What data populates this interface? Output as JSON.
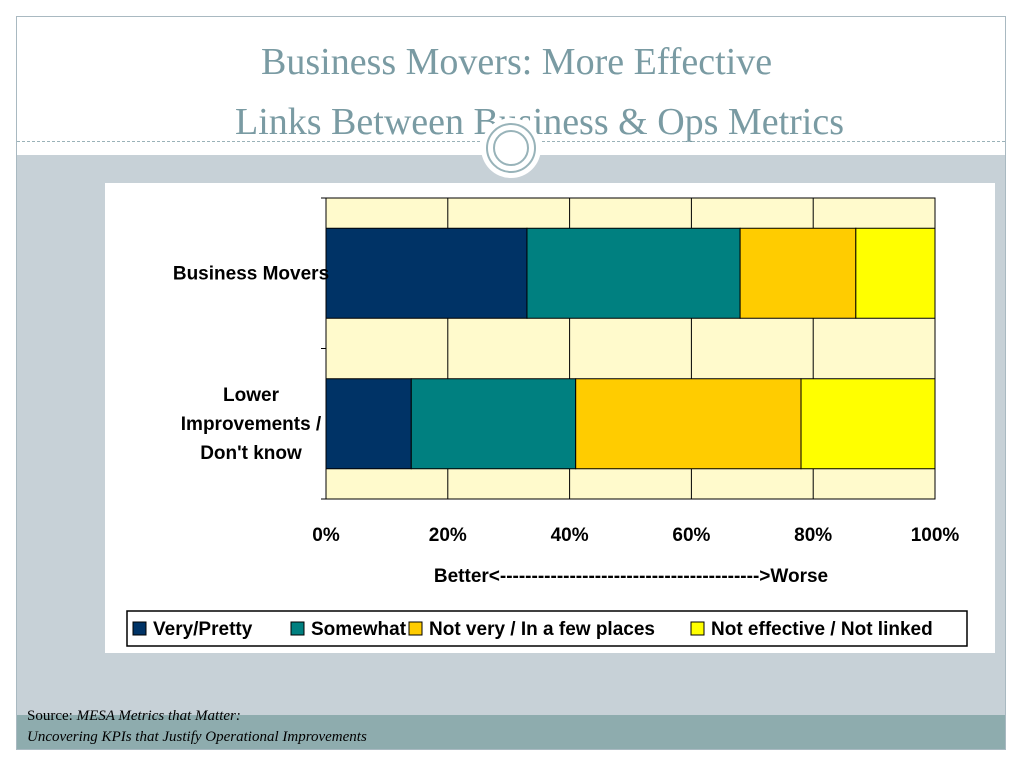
{
  "slide": {
    "title_line1": "Business Movers: More Effective",
    "title_line2": "Links Between Business & Ops Metrics",
    "source_label": "Source: ",
    "source_line1": "MESA  Metrics that Matter:",
    "source_line2": "Uncovering KPIs that Justify Operational Improvements"
  },
  "colors": {
    "plot_background": "#fffacc",
    "series": [
      "#003366",
      "#008080",
      "#ffcc00",
      "#ffff00"
    ]
  },
  "chart_data": {
    "type": "bar",
    "orientation": "horizontal",
    "stacked": "percent",
    "categories": [
      [
        "Business Movers"
      ],
      [
        "Lower",
        "Improvements /",
        "Don't know"
      ]
    ],
    "series": [
      {
        "name": "Very/Pretty",
        "values": [
          33,
          14
        ]
      },
      {
        "name": "Somewhat",
        "values": [
          35,
          27
        ]
      },
      {
        "name": "Not very  / In a few places",
        "values": [
          19,
          37
        ]
      },
      {
        "name": "Not effective / Not linked",
        "values": [
          13,
          22
        ]
      }
    ],
    "xlim": [
      0,
      100
    ],
    "xticks": [
      "0%",
      "20%",
      "40%",
      "60%",
      "80%",
      "100%"
    ],
    "xlabel": "Better<----------------------------------------->Worse",
    "grid": true,
    "legend_position": "bottom"
  }
}
